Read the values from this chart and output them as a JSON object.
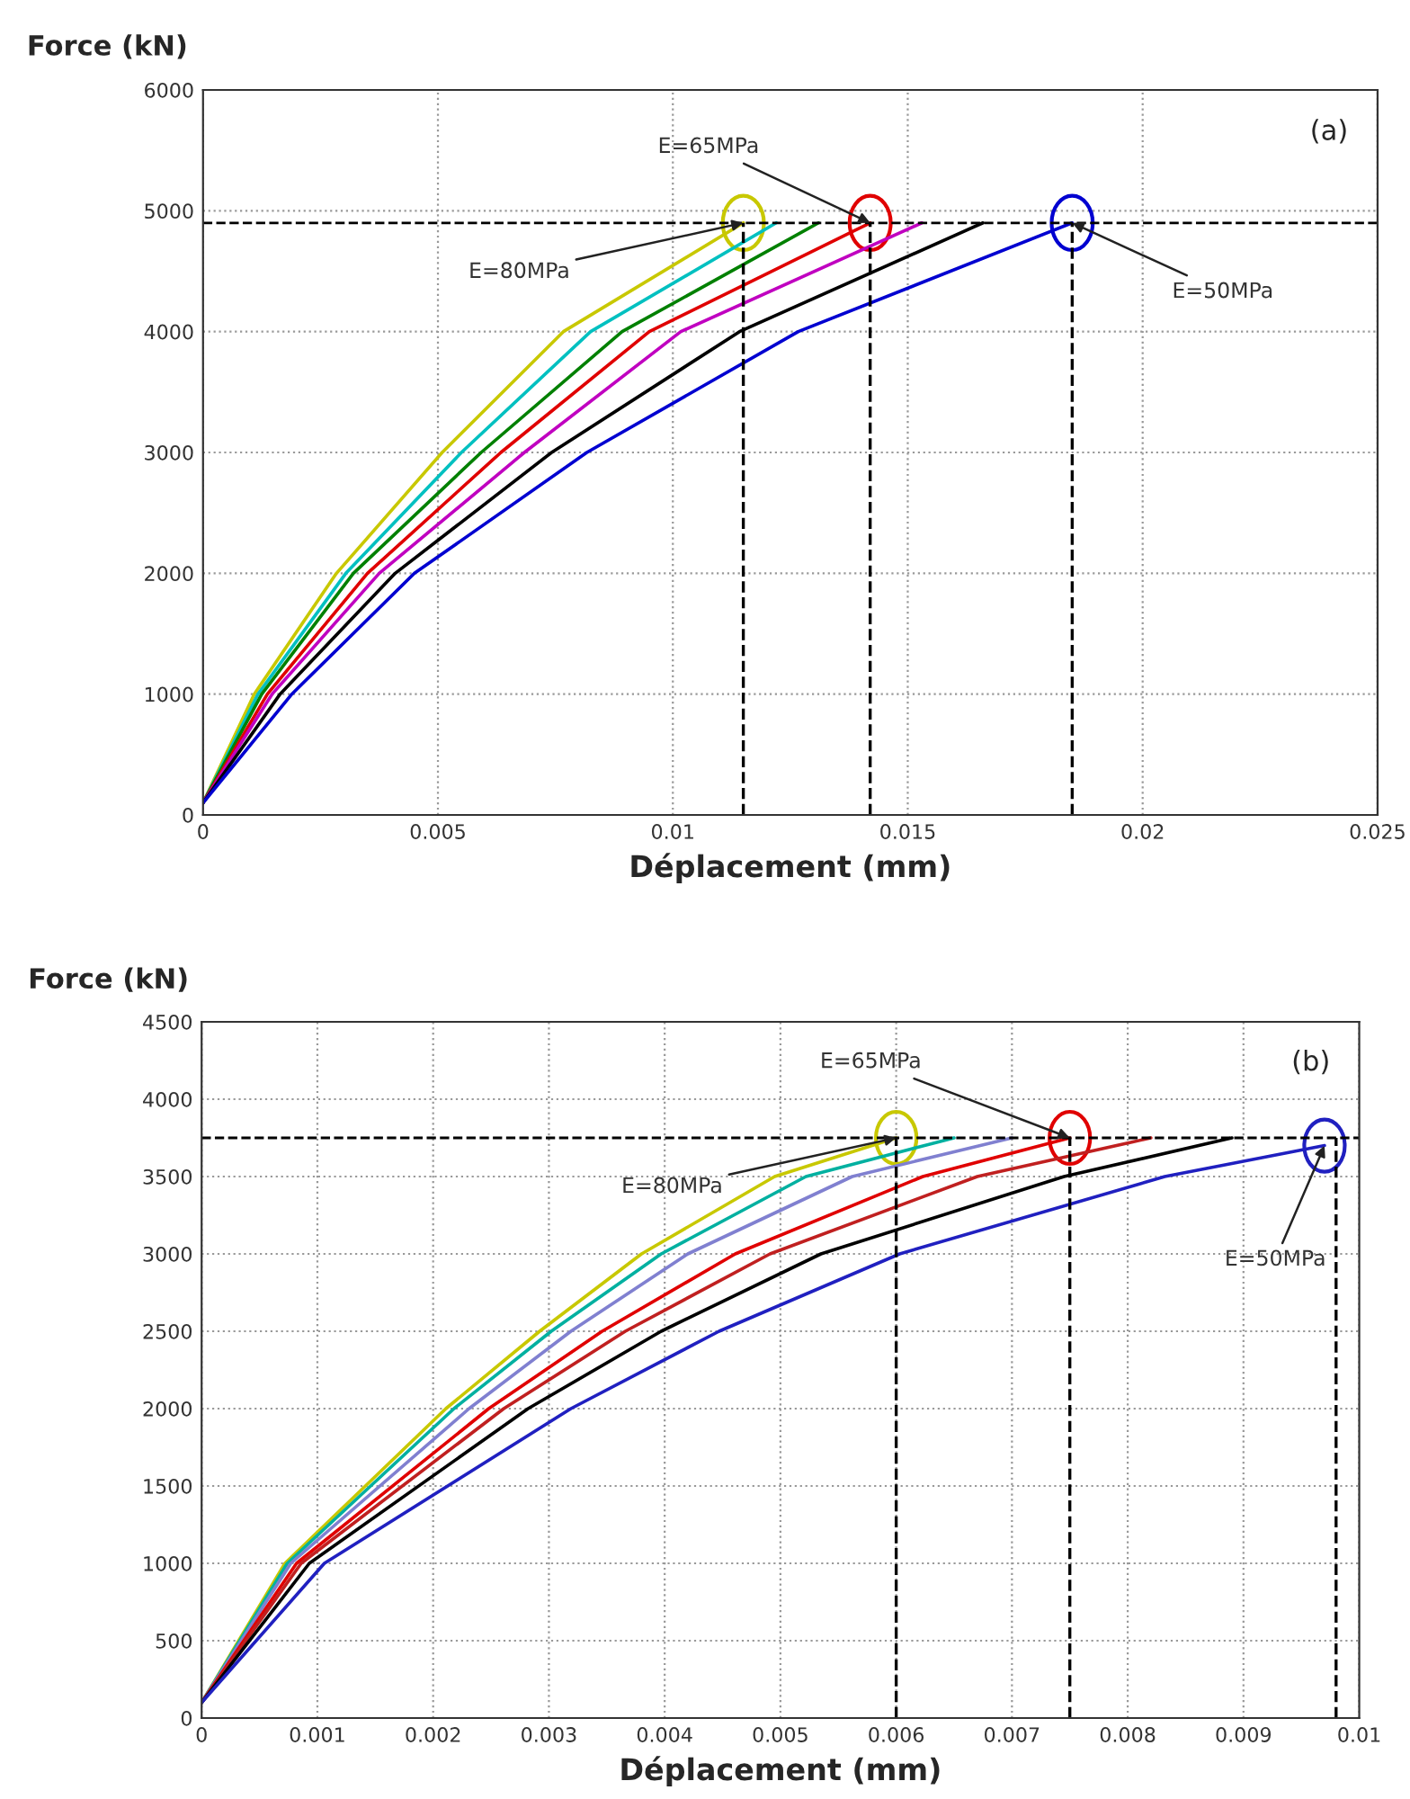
{
  "chart_data": [
    {
      "type": "line",
      "xlabel": "Déplacement (mm)",
      "ylabel": "Force (kN)",
      "xlim": [
        0,
        0.025
      ],
      "xticks": [
        0,
        0.005,
        0.01,
        0.015,
        0.02,
        0.025
      ],
      "ylim": [
        0,
        6000
      ],
      "yticks": [
        0,
        1000,
        2000,
        3000,
        4000,
        5000,
        6000
      ],
      "grid": true,
      "line_style": "solid",
      "series": [
        {
          "color": "#c8c800",
          "x": [
            0,
            0.00109,
            0.00284,
            0.00509,
            0.00767,
            0.0115
          ],
          "values": [
            100,
            1000,
            2000,
            3000,
            4000,
            4900
          ]
        },
        {
          "color": "#00c0c0",
          "x": [
            0,
            0.00117,
            0.00304,
            0.0055,
            0.00825,
            0.0122
          ],
          "values": [
            100,
            1000,
            2000,
            3000,
            4000,
            4900
          ]
        },
        {
          "color": "#008000",
          "x": [
            0,
            0.00125,
            0.0032,
            0.00592,
            0.00892,
            0.0131
          ],
          "values": [
            100,
            1000,
            2000,
            3000,
            4000,
            4900
          ]
        },
        {
          "color": "#e00000",
          "x": [
            0,
            0.00137,
            0.0035,
            0.00634,
            0.0095,
            0.0142
          ],
          "values": [
            100,
            1000,
            2000,
            3000,
            4000,
            4900
          ]
        },
        {
          "color": "#c000c0",
          "x": [
            0,
            0.00147,
            0.00375,
            0.00684,
            0.01017,
            0.0153
          ],
          "values": [
            100,
            1000,
            2000,
            3000,
            4000,
            4900
          ]
        },
        {
          "color": "#000000",
          "x": [
            0,
            0.00164,
            0.00409,
            0.00742,
            0.01142,
            0.0166
          ],
          "values": [
            100,
            1000,
            2000,
            3000,
            4000,
            4900
          ]
        },
        {
          "color": "#0000d0",
          "x": [
            0,
            0.00189,
            0.0045,
            0.00817,
            0.01267,
            0.0185
          ],
          "values": [
            100,
            1000,
            2000,
            3000,
            4000,
            4900
          ]
        }
      ],
      "ref_lines": [
        {
          "axis": "y",
          "value": 4900,
          "line_style": "dashed",
          "color": "#000000"
        },
        {
          "axis": "x",
          "value": 0.0115,
          "line_style": "dashed",
          "color": "#000000"
        },
        {
          "axis": "x",
          "value": 0.0142,
          "line_style": "dashed",
          "color": "#000000"
        },
        {
          "axis": "x",
          "value": 0.0185,
          "line_style": "dashed",
          "color": "#000000"
        }
      ],
      "annotations": [
        "(a)",
        {
          "text": "E=80MPa",
          "x": 0.0115,
          "y": 4900
        },
        {
          "text": "E=65MPa",
          "x": 0.0142,
          "y": 4900
        },
        {
          "text": "E=50MPa",
          "x": 0.0185,
          "y": 4900
        }
      ]
    },
    {
      "type": "line",
      "xlabel": "Déplacement (mm)",
      "ylabel": "Force (kN)",
      "xlim": [
        0,
        0.01
      ],
      "xticks": [
        0,
        0.001,
        0.002,
        0.003,
        0.004,
        0.005,
        0.006,
        0.007,
        0.008,
        0.009,
        0.01
      ],
      "ylim": [
        0,
        4500
      ],
      "yticks": [
        0,
        500,
        1000,
        1500,
        2000,
        2500,
        3000,
        3500,
        4000,
        4500
      ],
      "grid": true,
      "line_style": "solid",
      "series": [
        {
          "color": "#c8c800",
          "x": [
            0,
            0.00072,
            0.00211,
            0.00292,
            0.0038,
            0.00495,
            0.006
          ],
          "values": [
            100,
            1000,
            2000,
            2500,
            3000,
            3500,
            3750
          ]
        },
        {
          "color": "#00b0a0",
          "x": [
            0,
            0.00074,
            0.00218,
            0.00302,
            0.00397,
            0.00522,
            0.0065
          ],
          "values": [
            100,
            1000,
            2000,
            2500,
            3000,
            3500,
            3750
          ]
        },
        {
          "color": "#8080d0",
          "x": [
            0,
            0.00077,
            0.00231,
            0.00319,
            0.0042,
            0.00562,
            0.007
          ],
          "values": [
            100,
            1000,
            2000,
            2500,
            3000,
            3500,
            3750
          ]
        },
        {
          "color": "#e00000",
          "x": [
            0,
            0.00082,
            0.00248,
            0.00346,
            0.00461,
            0.00623,
            0.0075
          ],
          "values": [
            100,
            1000,
            2000,
            2500,
            3000,
            3500,
            3750
          ]
        },
        {
          "color": "#c02020",
          "x": [
            0,
            0.00086,
            0.00261,
            0.00366,
            0.00491,
            0.0067,
            0.0082
          ],
          "values": [
            100,
            1000,
            2000,
            2500,
            3000,
            3500,
            3750
          ]
        },
        {
          "color": "#000000",
          "x": [
            0,
            0.00093,
            0.00282,
            0.00397,
            0.00535,
            0.00745,
            0.0089
          ],
          "values": [
            100,
            1000,
            2000,
            2500,
            3000,
            3500,
            3750
          ]
        },
        {
          "color": "#2020c0",
          "x": [
            0,
            0.00106,
            0.00319,
            0.00447,
            0.00603,
            0.00832,
            0.0097
          ],
          "values": [
            100,
            1000,
            2000,
            2500,
            3000,
            3500,
            3700
          ]
        }
      ],
      "ref_lines": [
        {
          "axis": "y",
          "value": 3750,
          "line_style": "dashed",
          "color": "#000000"
        },
        {
          "axis": "x",
          "value": 0.006,
          "line_style": "dashed",
          "color": "#000000"
        },
        {
          "axis": "x",
          "value": 0.0075,
          "line_style": "dashed",
          "color": "#000000"
        },
        {
          "axis": "x",
          "value": 0.0098,
          "line_style": "dashed",
          "color": "#000000"
        }
      ],
      "annotations": [
        "(b)",
        {
          "text": "E=80MPa",
          "x": 0.006,
          "y": 3750
        },
        {
          "text": "E=65MPa",
          "x": 0.0075,
          "y": 3750
        },
        {
          "text": "E=50MPa",
          "x": 0.0097,
          "y": 3700
        }
      ]
    }
  ]
}
